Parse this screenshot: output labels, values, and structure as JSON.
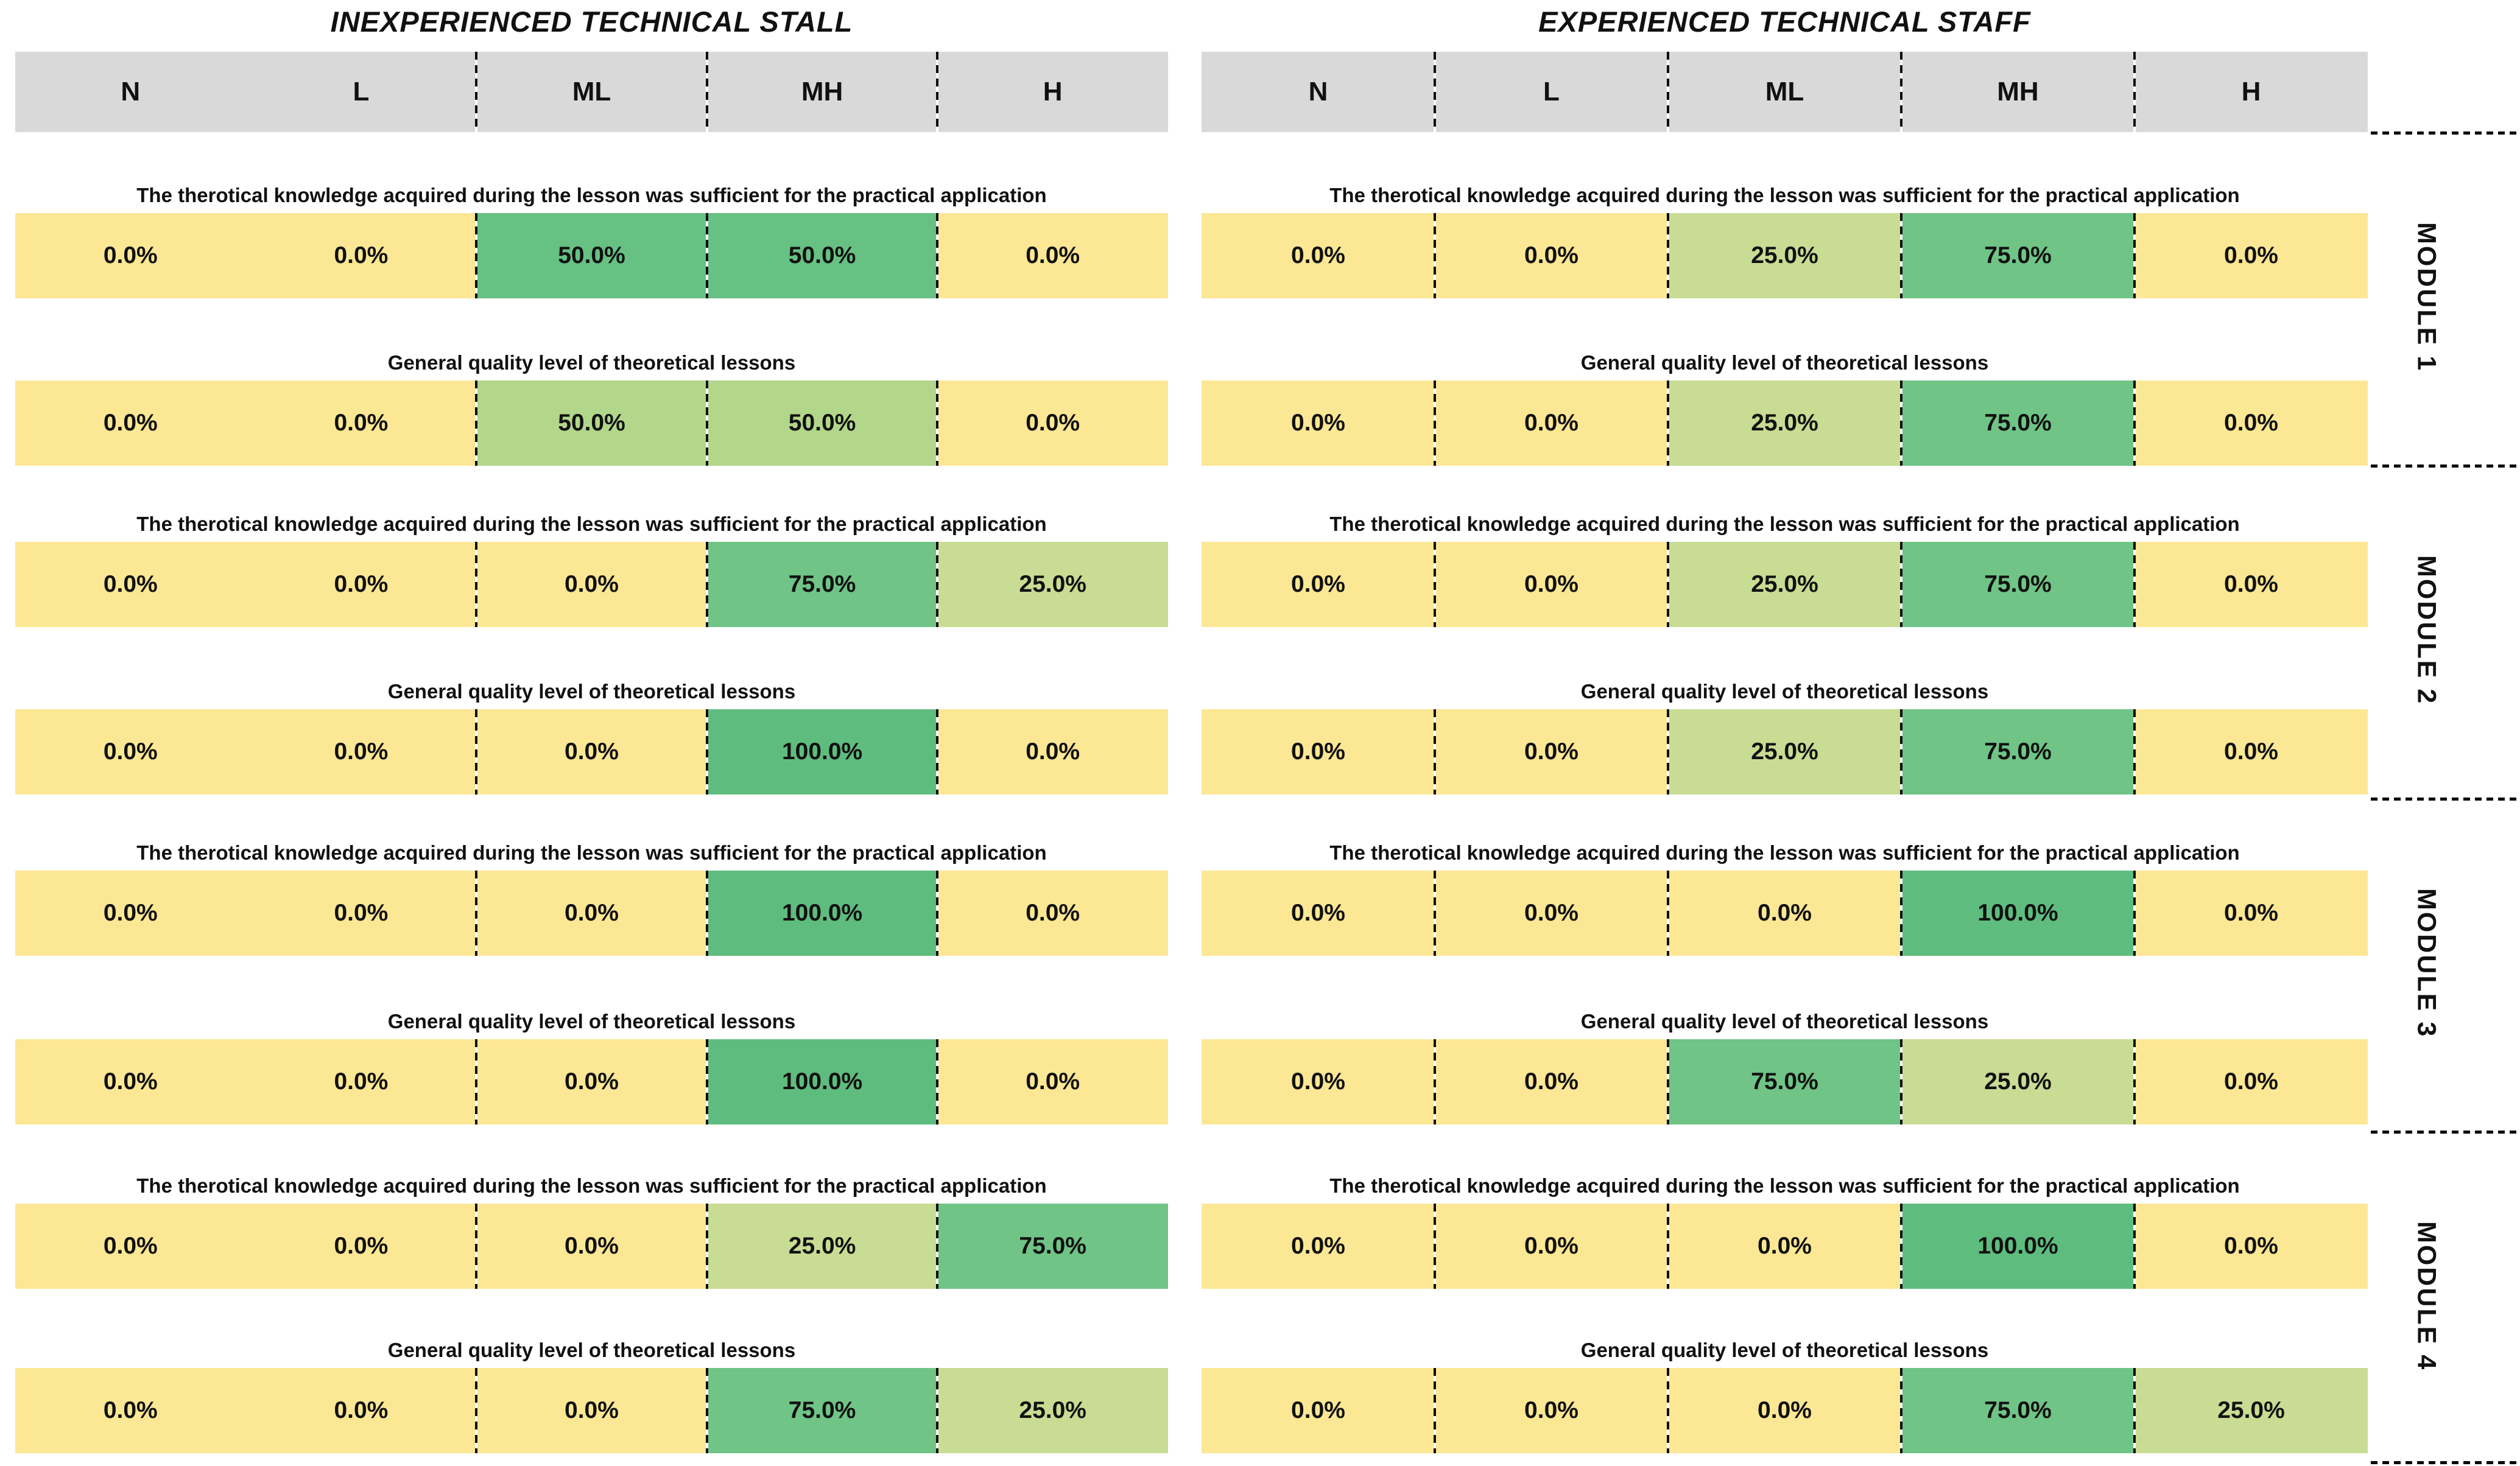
{
  "palette": {
    "yellow": "#FCE794",
    "green_25": "#C9DC93",
    "green_50_dark": "#66C183",
    "green_50_light": "#B2D78A",
    "green_75": "#6FC486",
    "green_100": "#5EBD7E",
    "header_gray": "#D9D9D9",
    "divider_black": "#0D0D0D",
    "text_black": "#111111"
  },
  "chart_data": {
    "type": "heatmap",
    "columns": [
      "N",
      "L",
      "ML",
      "MH",
      "H"
    ],
    "questions": {
      "q1": "The therotical knowledge acquired during the lesson was sufficient for the practical application",
      "q2": "General quality level of theoretical lessons"
    },
    "value_unit": "percent",
    "panels": [
      {
        "title": "INEXPERIENCED TECHNICAL STALL",
        "modules": [
          {
            "label": "MODULE 1",
            "rows": [
              {
                "q": "q1",
                "values": [
                  0.0,
                  0.0,
                  50.0,
                  50.0,
                  0.0
                ],
                "colors": [
                  "yellow",
                  "yellow",
                  "green_50_dark",
                  "green_50_dark",
                  "yellow"
                ]
              },
              {
                "q": "q2",
                "values": [
                  0.0,
                  0.0,
                  50.0,
                  50.0,
                  0.0
                ],
                "colors": [
                  "yellow",
                  "yellow",
                  "green_50_light",
                  "green_50_light",
                  "yellow"
                ]
              }
            ]
          },
          {
            "label": "MODULE 2",
            "rows": [
              {
                "q": "q1",
                "values": [
                  0.0,
                  0.0,
                  0.0,
                  75.0,
                  25.0
                ],
                "colors": [
                  "yellow",
                  "yellow",
                  "yellow",
                  "green_75",
                  "green_25"
                ]
              },
              {
                "q": "q2",
                "values": [
                  0.0,
                  0.0,
                  0.0,
                  100.0,
                  0.0
                ],
                "colors": [
                  "yellow",
                  "yellow",
                  "yellow",
                  "green_100",
                  "yellow"
                ]
              }
            ]
          },
          {
            "label": "MODULE 3",
            "rows": [
              {
                "q": "q1",
                "values": [
                  0.0,
                  0.0,
                  0.0,
                  100.0,
                  0.0
                ],
                "colors": [
                  "yellow",
                  "yellow",
                  "yellow",
                  "green_100",
                  "yellow"
                ]
              },
              {
                "q": "q2",
                "values": [
                  0.0,
                  0.0,
                  0.0,
                  100.0,
                  0.0
                ],
                "colors": [
                  "yellow",
                  "yellow",
                  "yellow",
                  "green_100",
                  "yellow"
                ]
              }
            ]
          },
          {
            "label": "MODULE 4",
            "rows": [
              {
                "q": "q1",
                "values": [
                  0.0,
                  0.0,
                  0.0,
                  25.0,
                  75.0
                ],
                "colors": [
                  "yellow",
                  "yellow",
                  "yellow",
                  "green_25",
                  "green_75"
                ]
              },
              {
                "q": "q2",
                "values": [
                  0.0,
                  0.0,
                  0.0,
                  75.0,
                  25.0
                ],
                "colors": [
                  "yellow",
                  "yellow",
                  "yellow",
                  "green_75",
                  "green_25"
                ]
              }
            ]
          }
        ]
      },
      {
        "title": "EXPERIENCED TECHNICAL STAFF",
        "modules": [
          {
            "label": "MODULE 1",
            "rows": [
              {
                "q": "q1",
                "values": [
                  0.0,
                  0.0,
                  25.0,
                  75.0,
                  0.0
                ],
                "colors": [
                  "yellow",
                  "yellow",
                  "green_25",
                  "green_75",
                  "yellow"
                ]
              },
              {
                "q": "q2",
                "values": [
                  0.0,
                  0.0,
                  25.0,
                  75.0,
                  0.0
                ],
                "colors": [
                  "yellow",
                  "yellow",
                  "green_25",
                  "green_75",
                  "yellow"
                ]
              }
            ]
          },
          {
            "label": "MODULE 2",
            "rows": [
              {
                "q": "q1",
                "values": [
                  0.0,
                  0.0,
                  25.0,
                  75.0,
                  0.0
                ],
                "colors": [
                  "yellow",
                  "yellow",
                  "green_25",
                  "green_75",
                  "yellow"
                ]
              },
              {
                "q": "q2",
                "values": [
                  0.0,
                  0.0,
                  25.0,
                  75.0,
                  0.0
                ],
                "colors": [
                  "yellow",
                  "yellow",
                  "green_25",
                  "green_75",
                  "yellow"
                ]
              }
            ]
          },
          {
            "label": "MODULE 3",
            "rows": [
              {
                "q": "q1",
                "values": [
                  0.0,
                  0.0,
                  0.0,
                  100.0,
                  0.0
                ],
                "colors": [
                  "yellow",
                  "yellow",
                  "yellow",
                  "green_100",
                  "yellow"
                ]
              },
              {
                "q": "q2",
                "values": [
                  0.0,
                  0.0,
                  75.0,
                  25.0,
                  0.0
                ],
                "colors": [
                  "yellow",
                  "yellow",
                  "green_75",
                  "green_25",
                  "yellow"
                ]
              }
            ]
          },
          {
            "label": "MODULE 4",
            "rows": [
              {
                "q": "q1",
                "values": [
                  0.0,
                  0.0,
                  0.0,
                  100.0,
                  0.0
                ],
                "colors": [
                  "yellow",
                  "yellow",
                  "yellow",
                  "green_100",
                  "yellow"
                ]
              },
              {
                "q": "q2",
                "values": [
                  0.0,
                  0.0,
                  0.0,
                  75.0,
                  25.0
                ],
                "colors": [
                  "yellow",
                  "yellow",
                  "yellow",
                  "green_75",
                  "green_25"
                ]
              }
            ]
          }
        ]
      }
    ],
    "module_labels": [
      "MODULE 1",
      "MODULE 2",
      "MODULE 3",
      "MODULE 4"
    ],
    "layout_hints": {
      "legend": "none",
      "grid": "dashed column separators; dotted module separators on right margin",
      "left_panel_dividers_after": [
        "L",
        "ML",
        "MH"
      ],
      "right_panel_dividers_after": [
        "N",
        "L",
        "ML",
        "MH"
      ]
    }
  }
}
